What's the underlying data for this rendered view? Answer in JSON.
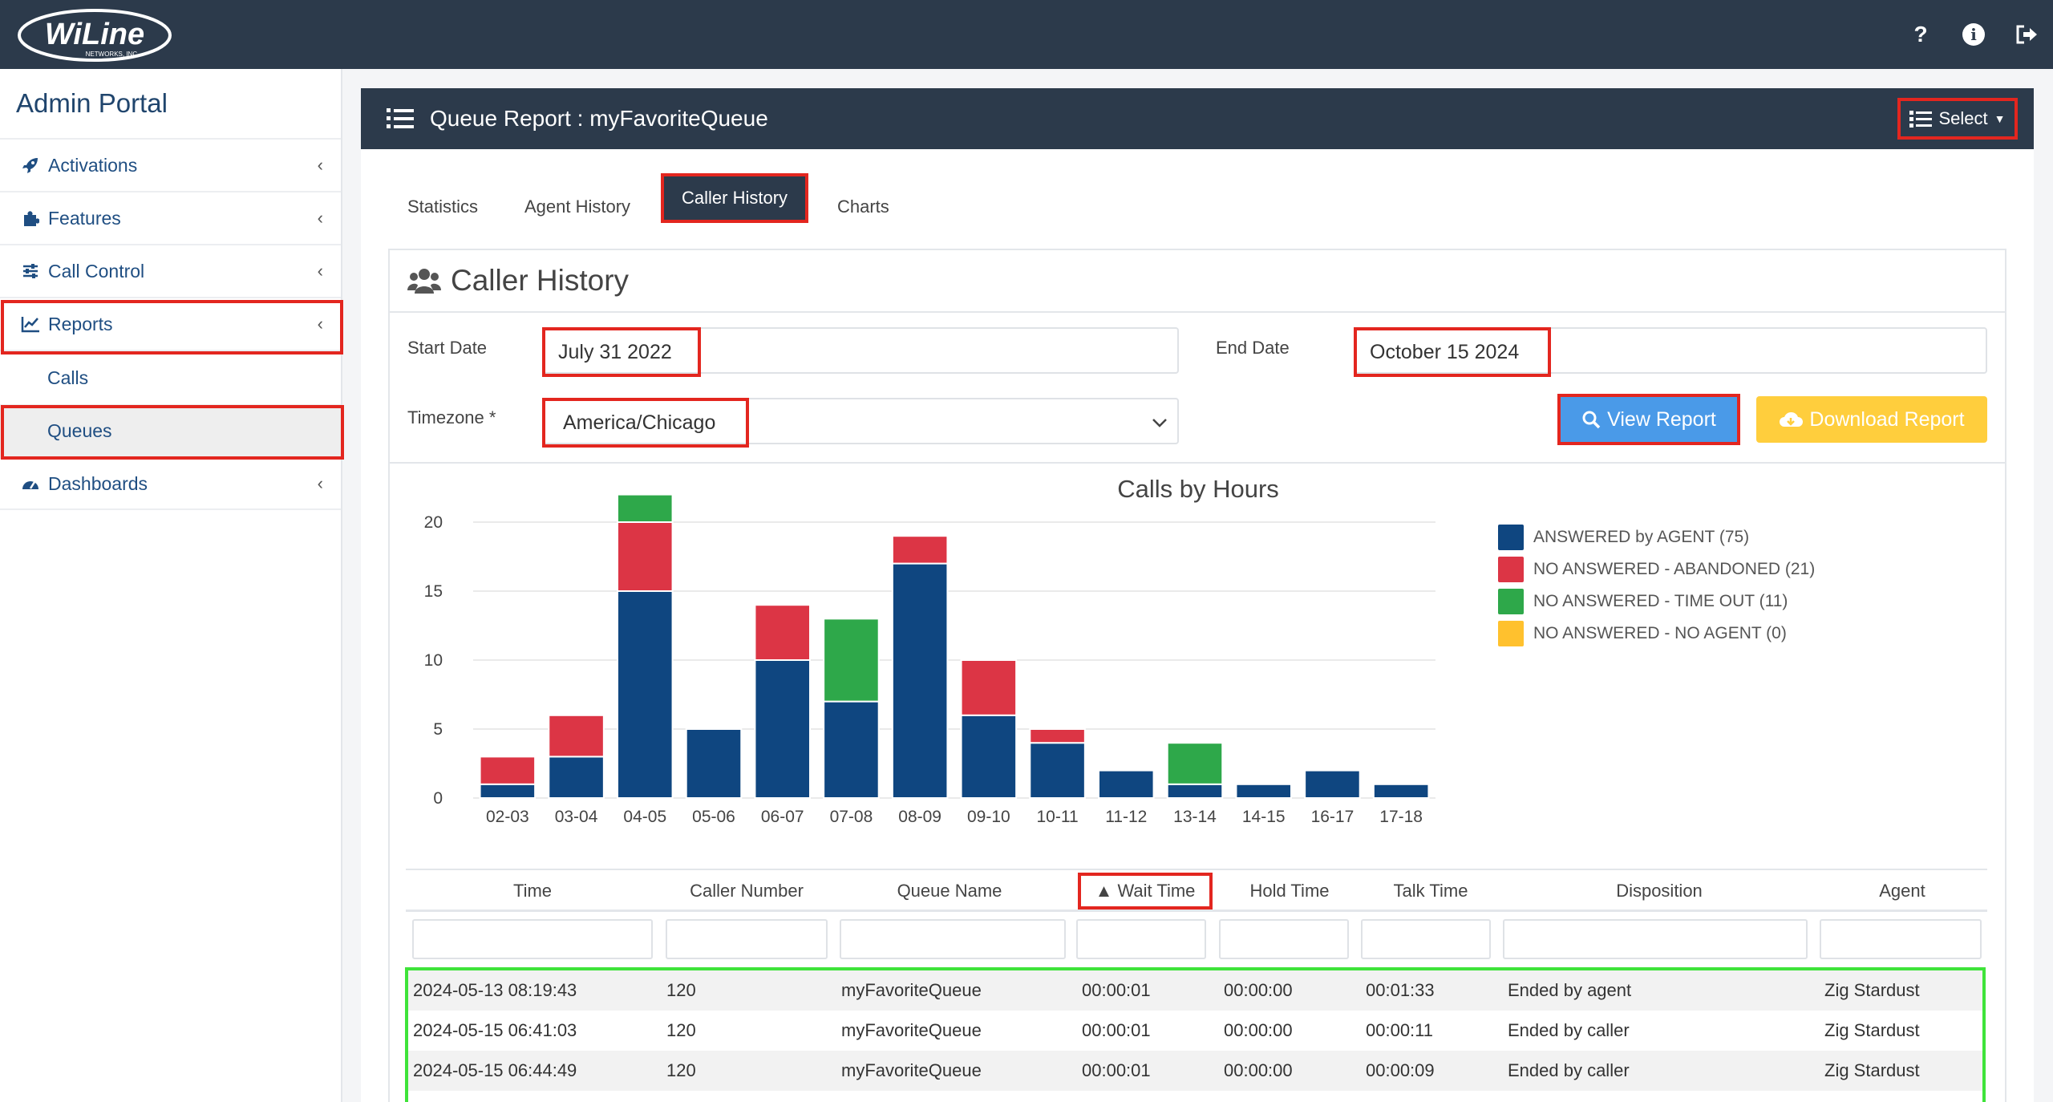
{
  "brand": {
    "logo_text": "WiLine",
    "logo_sub": "NETWORKS, INC."
  },
  "header": {
    "help_label": "?",
    "info_label": "i"
  },
  "sidebar": {
    "title": "Admin Portal",
    "items": [
      {
        "label": "Activations",
        "icon": "rocket-icon"
      },
      {
        "label": "Features",
        "icon": "puzzle-icon"
      },
      {
        "label": "Call Control",
        "icon": "sliders-icon"
      },
      {
        "label": "Reports",
        "icon": "chart-line-icon"
      },
      {
        "label": "Dashboards",
        "icon": "gauge-icon"
      }
    ],
    "sub_items": [
      "Calls",
      "Queues"
    ]
  },
  "card": {
    "title": "Queue Report : myFavoriteQueue",
    "select_label": "Select"
  },
  "tabs": [
    "Statistics",
    "Agent History",
    "Caller History",
    "Charts"
  ],
  "panel": {
    "title": "Caller History"
  },
  "form": {
    "start_label": "Start Date",
    "start_value": "July 31 2022",
    "end_label": "End Date",
    "end_value": "October 15 2024",
    "tz_label": "Timezone *",
    "tz_value": "America/Chicago",
    "view_label": "View Report",
    "download_label": "Download Report"
  },
  "chart_data": {
    "type": "bar",
    "stacked": true,
    "title": "Calls by Hours",
    "categories": [
      "02-03",
      "03-04",
      "04-05",
      "05-06",
      "06-07",
      "07-08",
      "08-09",
      "09-10",
      "10-11",
      "11-12",
      "13-14",
      "14-15",
      "16-17",
      "17-18"
    ],
    "series": [
      {
        "name": "ANSWERED by AGENT (75)",
        "color": "#0f4680",
        "values": [
          1,
          3,
          15,
          5,
          10,
          7,
          17,
          6,
          4,
          2,
          1,
          1,
          2,
          1
        ]
      },
      {
        "name": "NO ANSWERED - ABANDONED (21)",
        "color": "#dc3545",
        "values": [
          2,
          3,
          5,
          0,
          4,
          0,
          2,
          4,
          1,
          0,
          0,
          0,
          0,
          0
        ]
      },
      {
        "name": "NO ANSWERED - TIME OUT (11)",
        "color": "#2ea84a",
        "values": [
          0,
          0,
          2,
          0,
          0,
          6,
          0,
          0,
          0,
          0,
          3,
          0,
          0,
          0
        ]
      },
      {
        "name": "NO ANSWERED - NO AGENT (0)",
        "color": "#ffc12e",
        "values": [
          0,
          0,
          0,
          0,
          0,
          0,
          0,
          0,
          0,
          0,
          0,
          0,
          0,
          0
        ]
      }
    ],
    "yticks": [
      0,
      5,
      10,
      15,
      20
    ],
    "ylim": [
      0,
      22.5
    ],
    "grid": true,
    "legend": "right"
  },
  "table": {
    "columns": [
      "Time",
      "Caller Number",
      "Queue Name",
      "▲ Wait Time",
      "Hold Time",
      "Talk Time",
      "Disposition",
      "Agent"
    ],
    "rows": [
      [
        "2024-05-13 08:19:43",
        "120",
        "myFavoriteQueue",
        "00:00:01",
        "00:00:00",
        "00:01:33",
        "Ended by agent",
        "Zig Stardust"
      ],
      [
        "2024-05-15 06:41:03",
        "120",
        "myFavoriteQueue",
        "00:00:01",
        "00:00:00",
        "00:00:11",
        "Ended by caller",
        "Zig Stardust"
      ],
      [
        "2024-05-15 06:44:49",
        "120",
        "myFavoriteQueue",
        "00:00:01",
        "00:00:00",
        "00:00:09",
        "Ended by caller",
        "Zig Stardust"
      ]
    ]
  }
}
